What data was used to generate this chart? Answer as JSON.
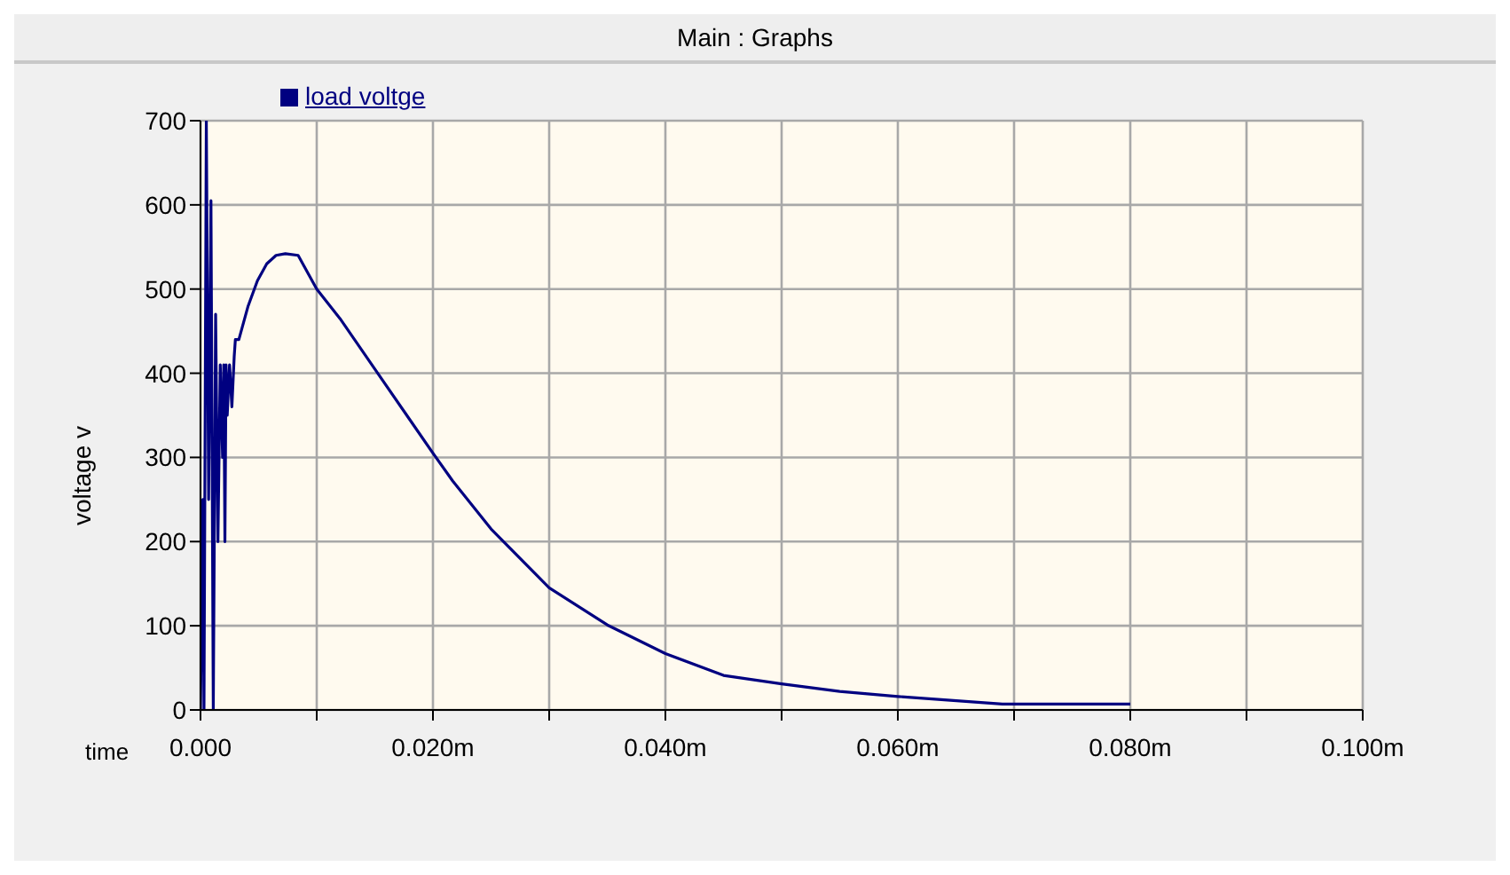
{
  "chart_data": {
    "type": "line",
    "title": "Main : Graphs",
    "xlabel": "time",
    "ylabel": "voltage v",
    "legend": "top left",
    "grid": true,
    "marker": "none",
    "line_style": "solid",
    "xlim": [
      0,
      0.1
    ],
    "ylim": [
      0,
      700
    ],
    "xticks": [
      {
        "value": 0,
        "label": "0.000"
      },
      {
        "value": 0.01,
        "label": null
      },
      {
        "value": 0.02,
        "label": "0.020m"
      },
      {
        "value": 0.03,
        "label": null
      },
      {
        "value": 0.04,
        "label": "0.040m"
      },
      {
        "value": 0.05,
        "label": null
      },
      {
        "value": 0.06,
        "label": "0.060m"
      },
      {
        "value": 0.07,
        "label": null
      },
      {
        "value": 0.08,
        "label": "0.080m"
      },
      {
        "value": 0.09,
        "label": null
      },
      {
        "value": 0.1,
        "label": "0.100m"
      }
    ],
    "yticks": [
      0,
      100,
      200,
      300,
      400,
      500,
      600,
      700
    ],
    "x": [
      0,
      0.0002,
      0.0003,
      0.0005,
      0.0007,
      0.0009,
      0.0011,
      0.0013,
      0.0015,
      0.0017,
      0.0019,
      0.002,
      0.0021,
      0.0022,
      0.0023,
      0.0025,
      0.0027,
      0.0029,
      0.003,
      0.0033,
      0.0041,
      0.0049,
      0.0057,
      0.0065,
      0.0073,
      0.0084,
      0.01,
      0.012,
      0.015,
      0.018,
      0.02,
      0.0217,
      0.025,
      0.03,
      0.035,
      0.04,
      0.045,
      0.05,
      0.055,
      0.06,
      0.064,
      0.069,
      0.08
    ],
    "series": [
      {
        "name": "load voltge",
        "color": "#000080",
        "values": [
          0,
          250,
          0,
          700,
          250,
          605,
          0,
          470,
          200,
          410,
          300,
          410,
          200,
          410,
          350,
          410,
          360,
          420,
          440,
          440,
          480,
          510,
          530,
          540,
          542,
          540,
          500,
          465,
          405,
          345,
          305,
          272,
          215,
          145,
          101,
          67,
          41,
          31,
          22,
          16,
          12,
          7,
          7
        ]
      }
    ]
  }
}
